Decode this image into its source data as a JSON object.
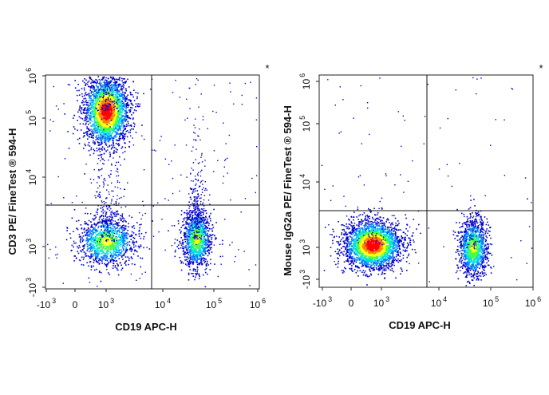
{
  "chart_data": [
    {
      "type": "scatter",
      "subtype": "flow-cytometry-density-dot-plot",
      "title": "",
      "corner_mark": "*",
      "xlabel": "CD19 APC-H",
      "ylabel": "CD3 PE/ FineTest ® 594-H",
      "x_scale": "biexponential",
      "y_scale": "biexponential",
      "x_ticks": [
        {
          "label": "-10",
          "exp": "3"
        },
        {
          "label": "0",
          "exp": ""
        },
        {
          "label": "10",
          "exp": "3"
        },
        {
          "label": "10",
          "exp": "4"
        },
        {
          "label": "10",
          "exp": "5"
        },
        {
          "label": "10",
          "exp": "6"
        }
      ],
      "y_ticks": [
        {
          "label": "-10",
          "exp": "3"
        },
        {
          "label": "10",
          "exp": "3"
        },
        {
          "label": "10",
          "exp": "4"
        },
        {
          "label": "10",
          "exp": "5"
        },
        {
          "label": "10",
          "exp": "6"
        }
      ],
      "gate": {
        "x": 5000,
        "y": 3300
      },
      "populations": [
        {
          "name": "CD3+ CD19-",
          "x_center": 1000,
          "y_center": 150000,
          "relative_density": "high"
        },
        {
          "name": "CD3- CD19-",
          "x_center": 1000,
          "y_center": 1200,
          "relative_density": "medium"
        },
        {
          "name": "CD3- CD19+",
          "x_center": 45000,
          "y_center": 1300,
          "relative_density": "medium"
        }
      ],
      "color_scale": [
        "#0000cc",
        "#0080ff",
        "#00e0e0",
        "#40ff40",
        "#ffff00",
        "#ff8000",
        "#ff0000"
      ]
    },
    {
      "type": "scatter",
      "subtype": "flow-cytometry-density-dot-plot",
      "title": "",
      "corner_mark": "*",
      "xlabel": "CD19 APC-H",
      "ylabel": "Mouse IgG2a PE/ FineTest ® 594-H",
      "x_scale": "biexponential",
      "y_scale": "biexponential",
      "x_ticks": [
        {
          "label": "-10",
          "exp": "3"
        },
        {
          "label": "0",
          "exp": ""
        },
        {
          "label": "10",
          "exp": "3"
        },
        {
          "label": "10",
          "exp": "4"
        },
        {
          "label": "10",
          "exp": "5"
        },
        {
          "label": "10",
          "exp": "6"
        }
      ],
      "y_ticks": [
        {
          "label": "-10",
          "exp": "3"
        },
        {
          "label": "10",
          "exp": "3"
        },
        {
          "label": "10",
          "exp": "4"
        },
        {
          "label": "10",
          "exp": "5"
        },
        {
          "label": "10",
          "exp": "6"
        }
      ],
      "gate": {
        "x": 5000,
        "y": 3300
      },
      "populations": [
        {
          "name": "CD19- isotype",
          "x_center": 700,
          "y_center": 1100,
          "relative_density": "high"
        },
        {
          "name": "CD19+ isotype",
          "x_center": 45000,
          "y_center": 1000,
          "relative_density": "medium"
        }
      ],
      "color_scale": [
        "#0000cc",
        "#0080ff",
        "#00e0e0",
        "#40ff40",
        "#ffff00",
        "#ff8000",
        "#ff0000"
      ]
    }
  ]
}
